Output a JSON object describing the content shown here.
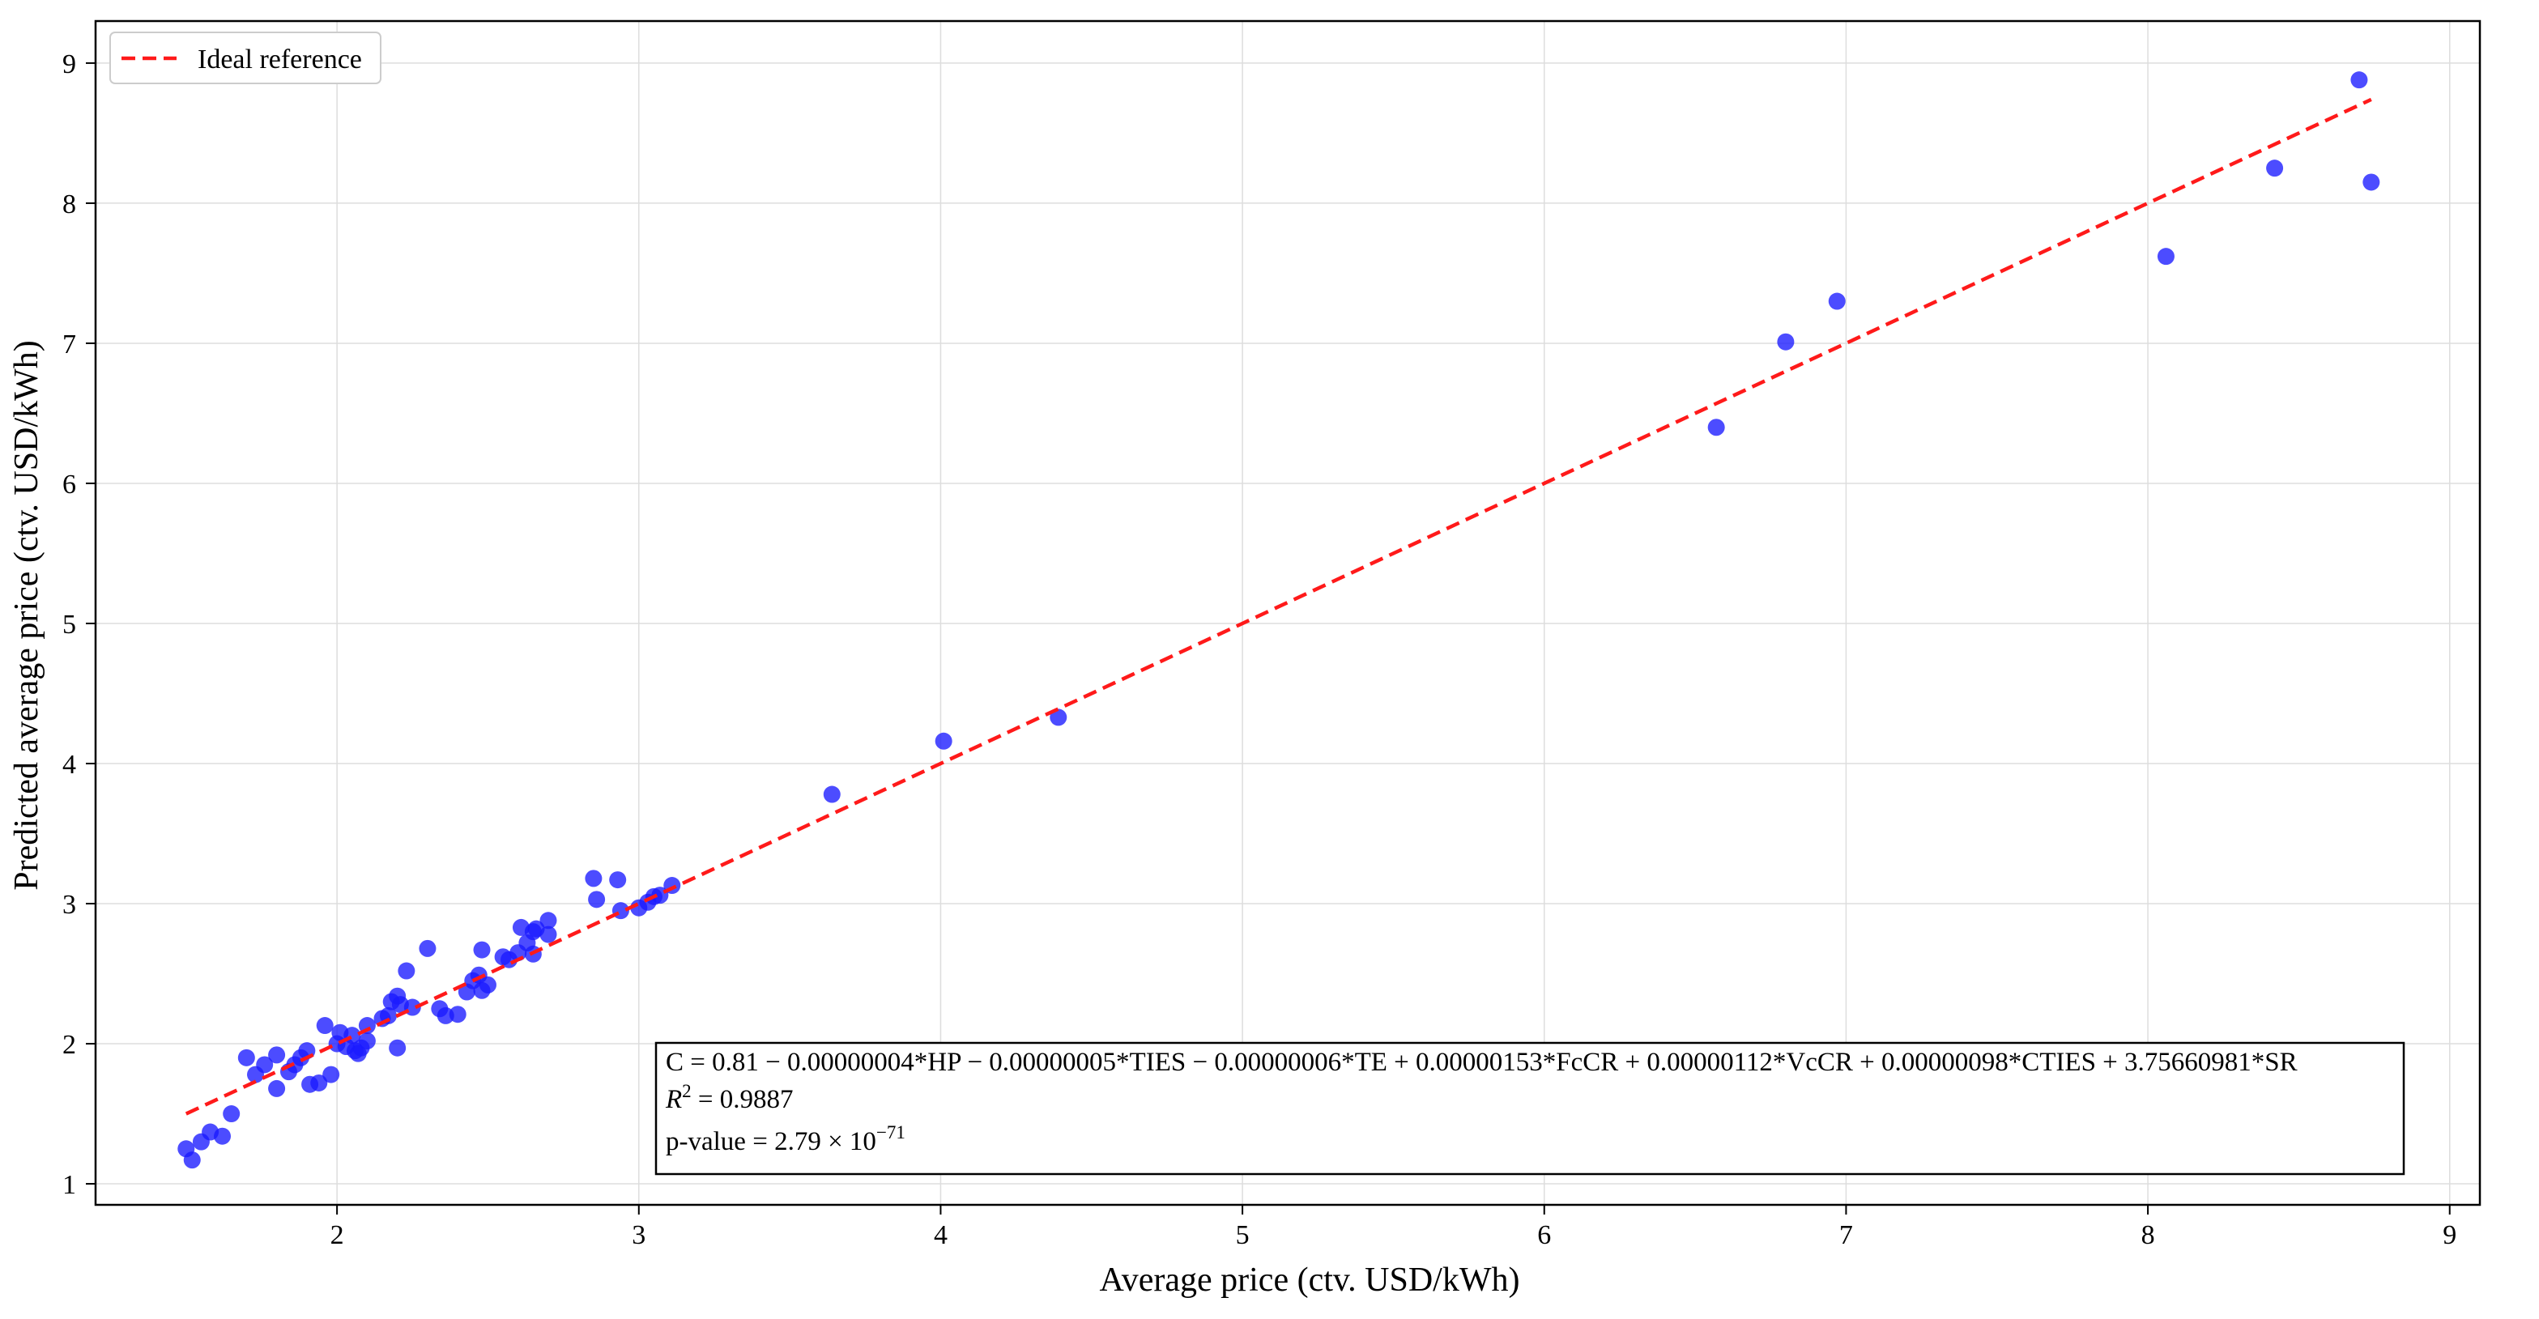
{
  "chart_data": {
    "type": "scatter",
    "title": "",
    "xlabel": "Average price (ctv. USD/kWh)",
    "ylabel": "Predicted average price (ctv. USD/kWh)",
    "xlim": [
      1.2,
      9.1
    ],
    "ylim": [
      0.85,
      9.3
    ],
    "xticks": [
      2,
      3,
      4,
      5,
      6,
      7,
      8,
      9
    ],
    "yticks": [
      1,
      2,
      3,
      4,
      5,
      6,
      7,
      8,
      9
    ],
    "grid": true,
    "legend_position": "top-left",
    "legend": [
      "Ideal reference"
    ],
    "colors": {
      "points": "#1a1aff",
      "reference_line": "#ff1a1a",
      "grid": "#dddddd"
    },
    "reference_line": {
      "name": "Ideal reference",
      "x": [
        1.5,
        8.74
      ],
      "y": [
        1.5,
        8.74
      ],
      "style": "dashed"
    },
    "series": [
      {
        "marker": "circle",
        "points": [
          [
            1.5,
            1.25
          ],
          [
            1.52,
            1.17
          ],
          [
            1.55,
            1.3
          ],
          [
            1.58,
            1.37
          ],
          [
            1.62,
            1.34
          ],
          [
            1.65,
            1.5
          ],
          [
            1.7,
            1.9
          ],
          [
            1.73,
            1.78
          ],
          [
            1.76,
            1.85
          ],
          [
            1.8,
            1.92
          ],
          [
            1.8,
            1.68
          ],
          [
            1.84,
            1.8
          ],
          [
            1.86,
            1.85
          ],
          [
            1.88,
            1.9
          ],
          [
            1.9,
            1.95
          ],
          [
            1.91,
            1.71
          ],
          [
            1.94,
            1.72
          ],
          [
            1.96,
            2.13
          ],
          [
            1.98,
            1.78
          ],
          [
            2.0,
            2.0
          ],
          [
            2.01,
            2.08
          ],
          [
            2.03,
            1.98
          ],
          [
            2.05,
            2.06
          ],
          [
            2.06,
            1.95
          ],
          [
            2.07,
            1.93
          ],
          [
            2.08,
            1.97
          ],
          [
            2.1,
            2.13
          ],
          [
            2.1,
            2.02
          ],
          [
            2.15,
            2.18
          ],
          [
            2.17,
            2.2
          ],
          [
            2.18,
            2.3
          ],
          [
            2.2,
            2.34
          ],
          [
            2.2,
            1.97
          ],
          [
            2.21,
            2.28
          ],
          [
            2.23,
            2.52
          ],
          [
            2.25,
            2.26
          ],
          [
            2.3,
            2.68
          ],
          [
            2.34,
            2.25
          ],
          [
            2.36,
            2.2
          ],
          [
            2.4,
            2.21
          ],
          [
            2.43,
            2.37
          ],
          [
            2.45,
            2.45
          ],
          [
            2.47,
            2.49
          ],
          [
            2.48,
            2.67
          ],
          [
            2.48,
            2.38
          ],
          [
            2.5,
            2.42
          ],
          [
            2.55,
            2.62
          ],
          [
            2.57,
            2.6
          ],
          [
            2.6,
            2.65
          ],
          [
            2.61,
            2.83
          ],
          [
            2.63,
            2.72
          ],
          [
            2.65,
            2.8
          ],
          [
            2.65,
            2.64
          ],
          [
            2.66,
            2.82
          ],
          [
            2.7,
            2.88
          ],
          [
            2.7,
            2.78
          ],
          [
            2.85,
            3.18
          ],
          [
            2.86,
            3.03
          ],
          [
            2.93,
            3.17
          ],
          [
            2.94,
            2.95
          ],
          [
            3.0,
            2.97
          ],
          [
            3.03,
            3.01
          ],
          [
            3.05,
            3.05
          ],
          [
            3.07,
            3.06
          ],
          [
            3.11,
            3.13
          ],
          [
            3.64,
            3.78
          ],
          [
            4.01,
            4.16
          ],
          [
            4.39,
            4.33
          ],
          [
            6.57,
            6.4
          ],
          [
            6.8,
            7.01
          ],
          [
            6.97,
            7.3
          ],
          [
            8.06,
            7.62
          ],
          [
            8.42,
            8.25
          ],
          [
            8.7,
            8.88
          ],
          [
            8.74,
            8.15
          ]
        ]
      }
    ],
    "annotation": {
      "equation": "C = 0.81 − 0.00000004*HP − 0.00000005*TIES − 0.00000006*TE + 0.00000153*FcCR + 0.00000112*VcCR + 0.00000098*CTIES + 3.75660981*SR",
      "r2_symbol": "R",
      "r2_exponent": "2",
      "r2_value": " = 0.9887",
      "pvalue_text": " p-value = 2.79 × 10",
      "pvalue_exponent": "−71"
    }
  }
}
